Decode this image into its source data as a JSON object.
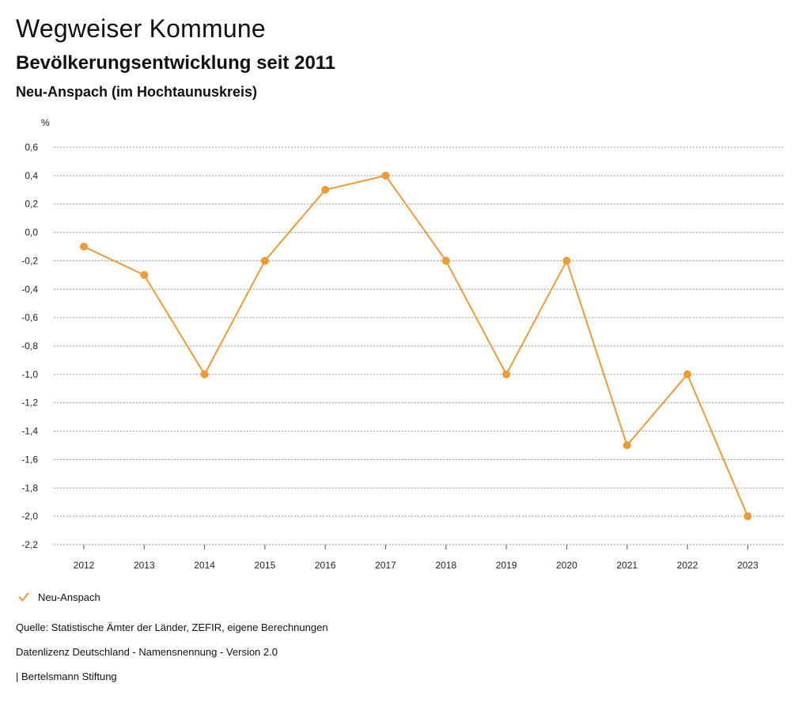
{
  "header": {
    "title": "Wegweiser Kommune",
    "subtitle": "Bevölkerungsentwicklung seit 2011",
    "region": "Neu-Anspach (im Hochtaunuskreis)"
  },
  "chart_data": {
    "type": "line",
    "ylabel": "%",
    "xlabel": "",
    "ylim": [
      -2.2,
      0.6
    ],
    "yticks": [
      0.6,
      0.4,
      0.2,
      0.0,
      -0.2,
      -0.4,
      -0.6,
      -0.8,
      -1.0,
      -1.2,
      -1.4,
      -1.6,
      -1.8,
      -2.0,
      -2.2
    ],
    "ytick_labels": [
      "0,6",
      "0,4",
      "0,2",
      "0,0",
      "-0,2",
      "-0,4",
      "-0,6",
      "-0,8",
      "-1,0",
      "-1,2",
      "-1,4",
      "-1,6",
      "-1,8",
      "-2,0",
      "-2,2"
    ],
    "categories": [
      "2012",
      "2013",
      "2014",
      "2015",
      "2016",
      "2017",
      "2018",
      "2019",
      "2020",
      "2021",
      "2022",
      "2023"
    ],
    "series": [
      {
        "name": "Neu-Anspach",
        "color": "#f09a36",
        "values": [
          -0.1,
          -0.3,
          -1.0,
          -0.2,
          0.3,
          0.4,
          -0.2,
          -1.0,
          -0.2,
          -1.5,
          -1.0,
          -2.0
        ]
      }
    ],
    "grid": true,
    "legend": "bottom-left"
  },
  "legend": {
    "label": "Neu-Anspach",
    "icon": "checkmark-icon"
  },
  "footer": {
    "source": "Quelle: Statistische Ämter der Länder, ZEFIR, eigene Berechnungen",
    "license": "Datenlizenz Deutschland - Namensnennung - Version 2.0",
    "publisher": "| Bertelsmann Stiftung"
  }
}
